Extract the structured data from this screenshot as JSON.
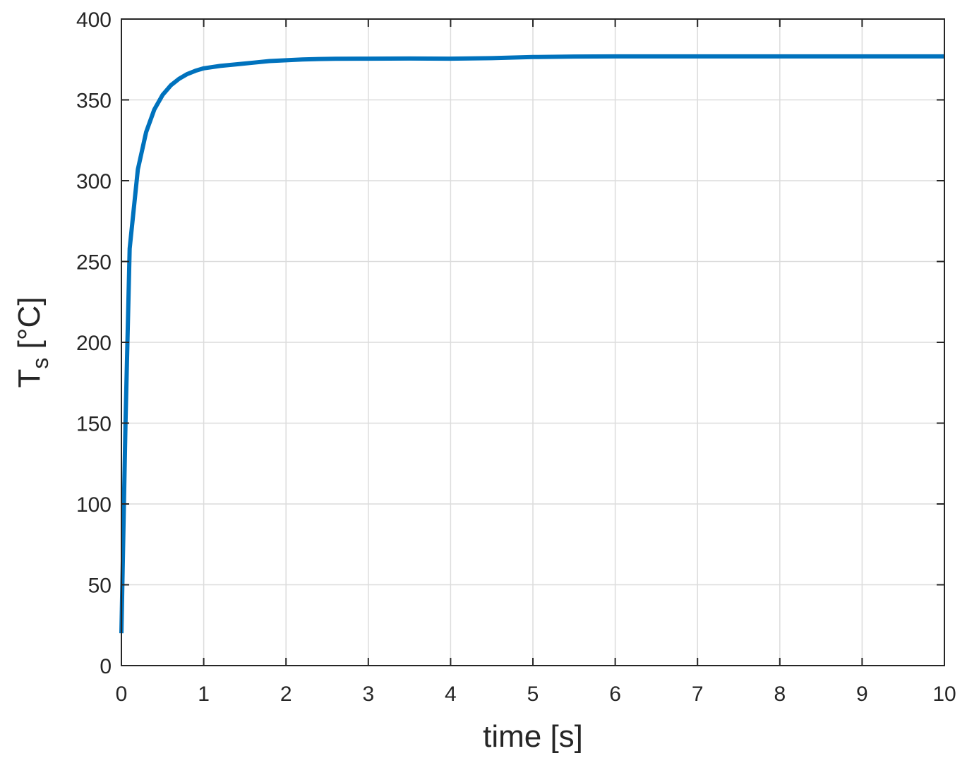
{
  "chart_data": {
    "type": "line",
    "xlabel": "time [s]",
    "ylabel": {
      "main": "T",
      "sub": "s",
      "unit": " [°C]"
    },
    "xlim": [
      0,
      10
    ],
    "ylim": [
      0,
      400
    ],
    "xticks": [
      0,
      1,
      2,
      3,
      4,
      5,
      6,
      7,
      8,
      9,
      10
    ],
    "yticks": [
      0,
      50,
      100,
      150,
      200,
      250,
      300,
      350,
      400
    ],
    "grid": true,
    "series": [
      {
        "color": "#0072BD",
        "x": [
          0,
          0.05,
          0.1,
          0.2,
          0.3,
          0.4,
          0.5,
          0.6,
          0.7,
          0.8,
          0.9,
          1.0,
          1.2,
          1.4,
          1.6,
          1.8,
          2.0,
          2.2,
          2.4,
          2.6,
          3.0,
          3.5,
          4.0,
          4.5,
          5.0,
          5.5,
          6.0,
          7.0,
          8.0,
          9.0,
          10.0
        ],
        "y": [
          20,
          150,
          258,
          307,
          330,
          344,
          353,
          359,
          363,
          366,
          368,
          369.5,
          371,
          372,
          373,
          374,
          374.5,
          375,
          375.3,
          375.4,
          375.5,
          375.6,
          375.5,
          375.8,
          376.5,
          376.8,
          376.9,
          376.9,
          376.9,
          376.9,
          376.9
        ]
      }
    ]
  }
}
